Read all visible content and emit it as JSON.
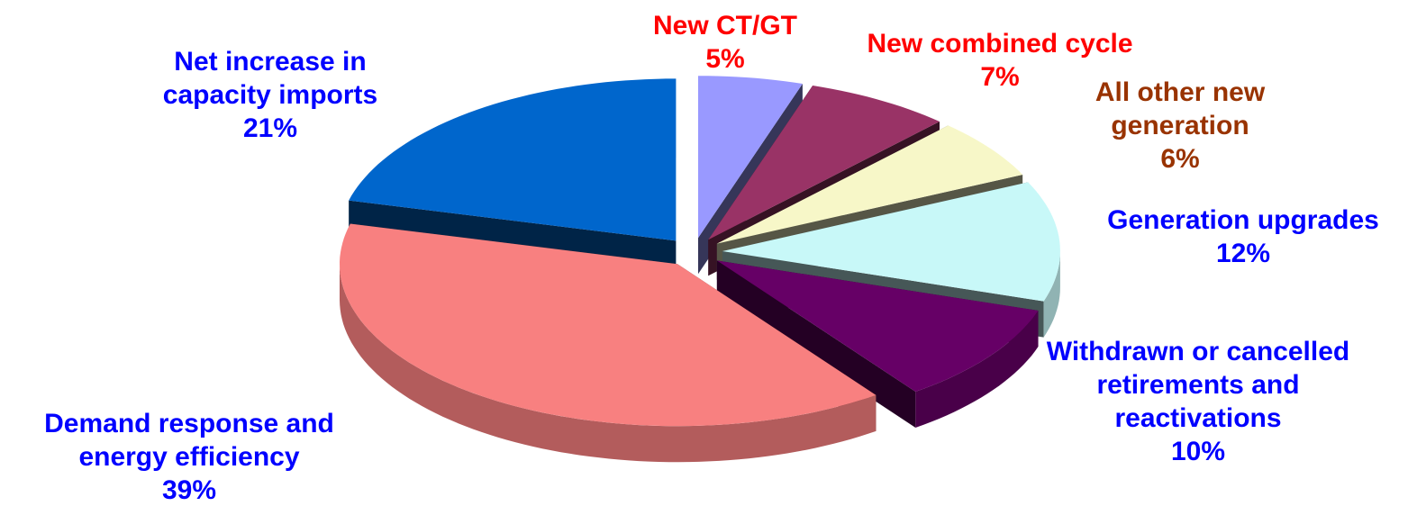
{
  "chart_data": {
    "type": "pie",
    "categories": [
      "New CT/GT",
      "New combined cycle",
      "All other new generation",
      "Generation upgrades",
      "Withdrawn or cancelled retirements and reactivations",
      "Demand response and energy efficiency",
      "Net increase in capacity imports"
    ],
    "values": [
      5,
      7,
      6,
      12,
      10,
      39,
      21
    ],
    "value_labels": [
      "5%",
      "7%",
      "6%",
      "12%",
      "10%",
      "39%",
      "21%"
    ],
    "colors": [
      "#9999ff",
      "#993366",
      "#f7f7c8",
      "#c8f8f8",
      "#660066",
      "#f88080",
      "#0066cc"
    ],
    "label_colors": [
      "#ff0000",
      "#ff0000",
      "#993300",
      "#0000ff",
      "#0000ff",
      "#0000ff",
      "#0000ff"
    ],
    "exploded": true,
    "three_d": true
  }
}
